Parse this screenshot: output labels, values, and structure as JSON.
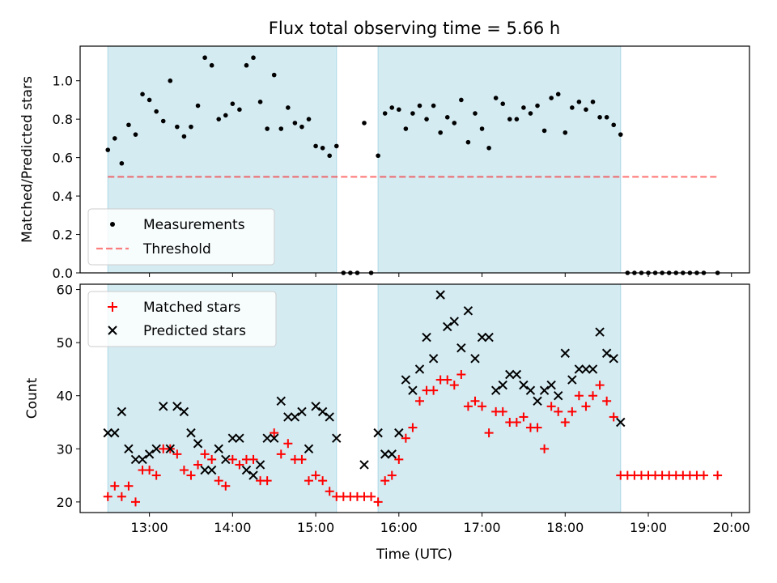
{
  "title": "Flux total observing time = 5.66 h",
  "colors": {
    "shade": "#add8e6",
    "threshold": "#ff0000",
    "measurement": "#000000",
    "matched": "#ff0000",
    "predicted": "#000000"
  },
  "chart_data": [
    {
      "type": "scatter",
      "ylabel": "Matched/Predicted stars",
      "xlim": [
        "12:10",
        "20:13"
      ],
      "ylim": [
        0,
        1.18
      ],
      "y_ticks": [
        "0.0",
        "0.2",
        "0.4",
        "0.6",
        "0.8",
        "1.0"
      ],
      "grid": false,
      "legend_position": "lower-left",
      "shaded_spans": [
        [
          "12:30",
          "15:15"
        ],
        [
          "15:45",
          "18:40"
        ]
      ],
      "legend": [
        {
          "label": "Measurements",
          "marker": "dot"
        },
        {
          "label": "Threshold",
          "marker": "dashed-line"
        }
      ],
      "threshold": {
        "name": "Threshold",
        "value": 0.5,
        "x_range": [
          "12:30",
          "19:50"
        ]
      },
      "series": [
        {
          "name": "Measurements",
          "marker": "dot",
          "points": [
            [
              "12:30",
              0.64
            ],
            [
              "12:35",
              0.7
            ],
            [
              "12:40",
              0.57
            ],
            [
              "12:45",
              0.77
            ],
            [
              "12:50",
              0.72
            ],
            [
              "12:55",
              0.93
            ],
            [
              "13:00",
              0.9
            ],
            [
              "13:05",
              0.84
            ],
            [
              "13:10",
              0.79
            ],
            [
              "13:15",
              1.0
            ],
            [
              "13:20",
              0.76
            ],
            [
              "13:25",
              0.71
            ],
            [
              "13:30",
              0.76
            ],
            [
              "13:35",
              0.87
            ],
            [
              "13:40",
              1.12
            ],
            [
              "13:45",
              1.08
            ],
            [
              "13:50",
              0.8
            ],
            [
              "13:55",
              0.82
            ],
            [
              "14:00",
              0.88
            ],
            [
              "14:05",
              0.85
            ],
            [
              "14:10",
              1.08
            ],
            [
              "14:15",
              1.12
            ],
            [
              "14:20",
              0.89
            ],
            [
              "14:25",
              0.75
            ],
            [
              "14:30",
              1.03
            ],
            [
              "14:35",
              0.75
            ],
            [
              "14:40",
              0.86
            ],
            [
              "14:45",
              0.78
            ],
            [
              "14:50",
              0.76
            ],
            [
              "14:55",
              0.8
            ],
            [
              "15:00",
              0.66
            ],
            [
              "15:05",
              0.65
            ],
            [
              "15:10",
              0.61
            ],
            [
              "15:15",
              0.66
            ],
            [
              "15:20",
              0.0
            ],
            [
              "15:25",
              0.0
            ],
            [
              "15:30",
              0.0
            ],
            [
              "15:35",
              0.78
            ],
            [
              "15:40",
              0.0
            ],
            [
              "15:45",
              0.61
            ],
            [
              "15:50",
              0.83
            ],
            [
              "15:55",
              0.86
            ],
            [
              "16:00",
              0.85
            ],
            [
              "16:05",
              0.75
            ],
            [
              "16:10",
              0.83
            ],
            [
              "16:15",
              0.87
            ],
            [
              "16:20",
              0.8
            ],
            [
              "16:25",
              0.87
            ],
            [
              "16:30",
              0.73
            ],
            [
              "16:35",
              0.81
            ],
            [
              "16:40",
              0.78
            ],
            [
              "16:45",
              0.9
            ],
            [
              "16:50",
              0.68
            ],
            [
              "16:55",
              0.83
            ],
            [
              "17:00",
              0.75
            ],
            [
              "17:05",
              0.65
            ],
            [
              "17:10",
              0.91
            ],
            [
              "17:15",
              0.88
            ],
            [
              "17:20",
              0.8
            ],
            [
              "17:25",
              0.8
            ],
            [
              "17:30",
              0.86
            ],
            [
              "17:35",
              0.83
            ],
            [
              "17:40",
              0.87
            ],
            [
              "17:45",
              0.74
            ],
            [
              "17:50",
              0.91
            ],
            [
              "17:55",
              0.93
            ],
            [
              "18:00",
              0.73
            ],
            [
              "18:05",
              0.86
            ],
            [
              "18:10",
              0.89
            ],
            [
              "18:15",
              0.85
            ],
            [
              "18:20",
              0.89
            ],
            [
              "18:25",
              0.81
            ],
            [
              "18:30",
              0.81
            ],
            [
              "18:35",
              0.77
            ],
            [
              "18:40",
              0.72
            ],
            [
              "18:45",
              0.0
            ],
            [
              "18:50",
              0.0
            ],
            [
              "18:55",
              0.0
            ],
            [
              "19:00",
              0.0
            ],
            [
              "19:05",
              0.0
            ],
            [
              "19:10",
              0.0
            ],
            [
              "19:15",
              0.0
            ],
            [
              "19:20",
              0.0
            ],
            [
              "19:25",
              0.0
            ],
            [
              "19:30",
              0.0
            ],
            [
              "19:35",
              0.0
            ],
            [
              "19:40",
              0.0
            ],
            [
              "19:50",
              0.0
            ]
          ]
        }
      ]
    },
    {
      "type": "scatter",
      "xlabel": "Time (UTC)",
      "ylabel": "Count",
      "xlim": [
        "12:10",
        "20:13"
      ],
      "ylim": [
        18,
        61
      ],
      "x_ticks": [
        "13:00",
        "14:00",
        "15:00",
        "16:00",
        "17:00",
        "18:00",
        "19:00",
        "20:00"
      ],
      "y_ticks": [
        "20",
        "30",
        "40",
        "50",
        "60"
      ],
      "grid": false,
      "legend_position": "upper-left",
      "shaded_spans": [
        [
          "12:30",
          "15:15"
        ],
        [
          "15:45",
          "18:40"
        ]
      ],
      "legend": [
        {
          "label": "Matched stars",
          "marker": "plus"
        },
        {
          "label": "Predicted stars",
          "marker": "x"
        }
      ],
      "series": [
        {
          "name": "Matched stars",
          "marker": "plus",
          "points": [
            [
              "12:30",
              21
            ],
            [
              "12:35",
              23
            ],
            [
              "12:40",
              21
            ],
            [
              "12:45",
              23
            ],
            [
              "12:50",
              20
            ],
            [
              "12:55",
              26
            ],
            [
              "13:00",
              26
            ],
            [
              "13:05",
              25
            ],
            [
              "13:10",
              30
            ],
            [
              "13:15",
              30
            ],
            [
              "13:20",
              29
            ],
            [
              "13:25",
              26
            ],
            [
              "13:30",
              25
            ],
            [
              "13:35",
              27
            ],
            [
              "13:40",
              29
            ],
            [
              "13:45",
              28
            ],
            [
              "13:50",
              24
            ],
            [
              "13:55",
              23
            ],
            [
              "14:00",
              28
            ],
            [
              "14:05",
              27
            ],
            [
              "14:10",
              28
            ],
            [
              "14:15",
              28
            ],
            [
              "14:20",
              24
            ],
            [
              "14:25",
              24
            ],
            [
              "14:30",
              33
            ],
            [
              "14:35",
              29
            ],
            [
              "14:40",
              31
            ],
            [
              "14:45",
              28
            ],
            [
              "14:50",
              28
            ],
            [
              "14:55",
              24
            ],
            [
              "15:00",
              25
            ],
            [
              "15:05",
              24
            ],
            [
              "15:10",
              22
            ],
            [
              "15:15",
              21
            ],
            [
              "15:20",
              21
            ],
            [
              "15:25",
              21
            ],
            [
              "15:30",
              21
            ],
            [
              "15:35",
              21
            ],
            [
              "15:40",
              21
            ],
            [
              "15:45",
              20
            ],
            [
              "15:50",
              24
            ],
            [
              "15:55",
              25
            ],
            [
              "16:00",
              28
            ],
            [
              "16:05",
              32
            ],
            [
              "16:10",
              34
            ],
            [
              "16:15",
              39
            ],
            [
              "16:20",
              41
            ],
            [
              "16:25",
              41
            ],
            [
              "16:30",
              43
            ],
            [
              "16:35",
              43
            ],
            [
              "16:40",
              42
            ],
            [
              "16:45",
              44
            ],
            [
              "16:50",
              38
            ],
            [
              "16:55",
              39
            ],
            [
              "17:00",
              38
            ],
            [
              "17:05",
              33
            ],
            [
              "17:10",
              37
            ],
            [
              "17:15",
              37
            ],
            [
              "17:20",
              35
            ],
            [
              "17:25",
              35
            ],
            [
              "17:30",
              36
            ],
            [
              "17:35",
              34
            ],
            [
              "17:40",
              34
            ],
            [
              "17:45",
              30
            ],
            [
              "17:50",
              38
            ],
            [
              "17:55",
              37
            ],
            [
              "18:00",
              35
            ],
            [
              "18:05",
              37
            ],
            [
              "18:10",
              40
            ],
            [
              "18:15",
              38
            ],
            [
              "18:20",
              40
            ],
            [
              "18:25",
              42
            ],
            [
              "18:30",
              39
            ],
            [
              "18:35",
              36
            ],
            [
              "18:40",
              25
            ],
            [
              "18:45",
              25
            ],
            [
              "18:50",
              25
            ],
            [
              "18:55",
              25
            ],
            [
              "19:00",
              25
            ],
            [
              "19:05",
              25
            ],
            [
              "19:10",
              25
            ],
            [
              "19:15",
              25
            ],
            [
              "19:20",
              25
            ],
            [
              "19:25",
              25
            ],
            [
              "19:30",
              25
            ],
            [
              "19:35",
              25
            ],
            [
              "19:40",
              25
            ],
            [
              "19:50",
              25
            ]
          ]
        },
        {
          "name": "Predicted stars",
          "marker": "x",
          "points": [
            [
              "12:30",
              33
            ],
            [
              "12:35",
              33
            ],
            [
              "12:40",
              37
            ],
            [
              "12:45",
              30
            ],
            [
              "12:50",
              28
            ],
            [
              "12:55",
              28
            ],
            [
              "13:00",
              29
            ],
            [
              "13:05",
              30
            ],
            [
              "13:10",
              38
            ],
            [
              "13:15",
              30
            ],
            [
              "13:20",
              38
            ],
            [
              "13:25",
              37
            ],
            [
              "13:30",
              33
            ],
            [
              "13:35",
              31
            ],
            [
              "13:40",
              26
            ],
            [
              "13:45",
              26
            ],
            [
              "13:50",
              30
            ],
            [
              "13:55",
              28
            ],
            [
              "14:00",
              32
            ],
            [
              "14:05",
              32
            ],
            [
              "14:10",
              26
            ],
            [
              "14:15",
              25
            ],
            [
              "14:20",
              27
            ],
            [
              "14:25",
              32
            ],
            [
              "14:30",
              32
            ],
            [
              "14:35",
              39
            ],
            [
              "14:40",
              36
            ],
            [
              "14:45",
              36
            ],
            [
              "14:50",
              37
            ],
            [
              "14:55",
              30
            ],
            [
              "15:00",
              38
            ],
            [
              "15:05",
              37
            ],
            [
              "15:10",
              36
            ],
            [
              "15:15",
              32
            ],
            [
              "15:35",
              27
            ],
            [
              "15:45",
              33
            ],
            [
              "15:50",
              29
            ],
            [
              "15:55",
              29
            ],
            [
              "16:00",
              33
            ],
            [
              "16:05",
              43
            ],
            [
              "16:10",
              41
            ],
            [
              "16:15",
              45
            ],
            [
              "16:20",
              51
            ],
            [
              "16:25",
              47
            ],
            [
              "16:30",
              59
            ],
            [
              "16:35",
              53
            ],
            [
              "16:40",
              54
            ],
            [
              "16:45",
              49
            ],
            [
              "16:50",
              56
            ],
            [
              "16:55",
              47
            ],
            [
              "17:00",
              51
            ],
            [
              "17:05",
              51
            ],
            [
              "17:10",
              41
            ],
            [
              "17:15",
              42
            ],
            [
              "17:20",
              44
            ],
            [
              "17:25",
              44
            ],
            [
              "17:30",
              42
            ],
            [
              "17:35",
              41
            ],
            [
              "17:40",
              39
            ],
            [
              "17:45",
              41
            ],
            [
              "17:50",
              42
            ],
            [
              "17:55",
              40
            ],
            [
              "18:00",
              48
            ],
            [
              "18:05",
              43
            ],
            [
              "18:10",
              45
            ],
            [
              "18:15",
              45
            ],
            [
              "18:20",
              45
            ],
            [
              "18:25",
              52
            ],
            [
              "18:30",
              48
            ],
            [
              "18:35",
              47
            ],
            [
              "18:40",
              35
            ]
          ]
        }
      ]
    }
  ]
}
